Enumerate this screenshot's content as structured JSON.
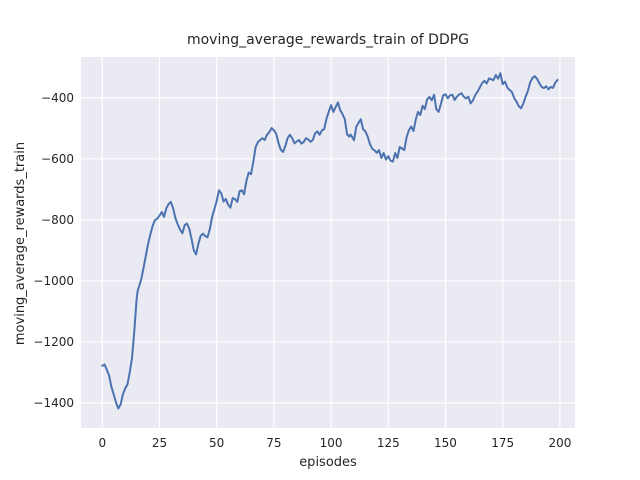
{
  "chart_data": {
    "type": "line",
    "title": "moving_average_rewards_train of DDPG",
    "xlabel": "episodes",
    "ylabel": "moving_average_rewards_train",
    "xlim": [
      -9.3,
      206.6
    ],
    "ylim": [
      -1482,
      -266
    ],
    "xticks": [
      0,
      25,
      50,
      75,
      100,
      125,
      150,
      175,
      200
    ],
    "yticks": [
      -1400,
      -1200,
      -1000,
      -800,
      -600,
      -400
    ],
    "xtick_labels": [
      "0",
      "25",
      "50",
      "75",
      "100",
      "125",
      "150",
      "175",
      "200"
    ],
    "ytick_labels": [
      "−1400",
      "−1200",
      "−1000",
      "−800",
      "−600",
      "−400"
    ],
    "grid": true,
    "legend": null,
    "line_color": "#4c72b0",
    "line_width": 2,
    "background_color": "#eaeaf2",
    "grid_color": "#ffffff",
    "text_color": "#262626",
    "series": [
      {
        "name": "moving_average_rewards_train",
        "x": [
          0,
          1,
          2,
          3,
          4,
          5,
          6,
          7,
          8,
          9,
          10,
          11,
          12,
          13,
          14,
          15,
          15.5,
          16,
          17,
          18,
          19,
          20,
          21,
          22,
          23,
          24,
          25,
          26,
          27,
          28,
          29,
          30,
          31,
          32,
          33,
          34,
          35,
          36,
          37,
          38,
          39,
          40,
          41,
          42,
          43,
          44,
          45,
          46,
          47,
          48,
          49,
          50,
          51,
          52,
          53,
          54,
          55,
          56,
          57,
          58,
          59,
          60,
          61,
          62,
          63,
          64,
          65,
          66,
          67,
          68,
          69,
          70,
          71,
          72,
          73,
          74,
          75,
          76,
          77,
          78,
          79,
          80,
          81,
          82,
          83,
          84,
          85,
          86,
          87,
          88,
          89,
          90,
          91,
          92,
          93,
          94,
          95,
          96,
          97,
          98,
          99,
          100,
          101,
          102,
          103,
          104,
          105,
          106,
          107,
          108,
          108.5,
          109,
          110,
          111,
          112,
          113,
          114,
          115,
          116,
          117,
          118,
          119,
          120,
          121,
          122,
          123,
          124,
          125,
          126,
          127,
          128,
          129,
          130,
          131,
          132,
          133,
          134,
          135,
          136,
          137,
          138,
          139,
          140,
          141,
          142,
          143,
          144,
          145,
          146,
          147,
          148,
          149,
          150,
          151,
          152,
          153,
          154,
          155,
          156,
          157,
          158,
          159,
          160,
          161,
          162,
          163,
          164,
          165,
          166,
          167,
          168,
          169,
          170,
          171,
          172,
          173,
          174,
          175,
          176,
          177,
          178,
          179,
          180,
          181,
          182,
          183,
          184,
          185,
          186,
          187,
          188,
          189,
          190,
          191,
          192,
          193,
          194,
          195,
          196,
          197,
          198,
          199
        ],
        "y": [
          -1278,
          -1274,
          -1292,
          -1310,
          -1347,
          -1372,
          -1398,
          -1418,
          -1405,
          -1372,
          -1352,
          -1340,
          -1300,
          -1253,
          -1165,
          -1060,
          -1032,
          -1020,
          -995,
          -958,
          -918,
          -880,
          -848,
          -820,
          -801,
          -796,
          -786,
          -774,
          -790,
          -762,
          -748,
          -741,
          -763,
          -795,
          -815,
          -832,
          -844,
          -817,
          -812,
          -828,
          -862,
          -900,
          -913,
          -878,
          -852,
          -845,
          -853,
          -857,
          -830,
          -790,
          -765,
          -737,
          -703,
          -713,
          -740,
          -731,
          -750,
          -760,
          -728,
          -732,
          -741,
          -706,
          -703,
          -716,
          -672,
          -645,
          -650,
          -610,
          -562,
          -545,
          -538,
          -532,
          -538,
          -521,
          -512,
          -499,
          -506,
          -518,
          -548,
          -570,
          -577,
          -558,
          -532,
          -521,
          -532,
          -549,
          -543,
          -538,
          -550,
          -545,
          -532,
          -536,
          -544,
          -538,
          -516,
          -510,
          -521,
          -507,
          -502,
          -468,
          -445,
          -424,
          -446,
          -430,
          -415,
          -440,
          -453,
          -470,
          -520,
          -527,
          -520,
          -526,
          -539,
          -494,
          -482,
          -470,
          -503,
          -510,
          -527,
          -552,
          -567,
          -572,
          -580,
          -571,
          -597,
          -581,
          -602,
          -591,
          -606,
          -609,
          -581,
          -597,
          -561,
          -566,
          -571,
          -529,
          -506,
          -494,
          -509,
          -472,
          -446,
          -456,
          -426,
          -436,
          -404,
          -397,
          -408,
          -390,
          -437,
          -446,
          -420,
          -392,
          -388,
          -401,
          -392,
          -390,
          -407,
          -396,
          -389,
          -385,
          -396,
          -402,
          -396,
          -418,
          -408,
          -391,
          -380,
          -366,
          -352,
          -344,
          -353,
          -336,
          -339,
          -342,
          -325,
          -337,
          -319,
          -355,
          -347,
          -366,
          -374,
          -380,
          -400,
          -412,
          -427,
          -434,
          -419,
          -396,
          -377,
          -349,
          -335,
          -329,
          -337,
          -352,
          -364,
          -368,
          -362,
          -372,
          -364,
          -367,
          -350,
          -341
        ]
      }
    ]
  }
}
